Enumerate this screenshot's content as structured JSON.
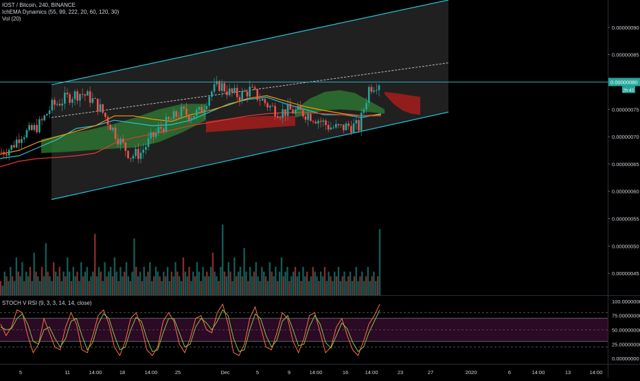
{
  "legend": {
    "symbol": "IOST / Bitcoin, 240, BINANCE",
    "indicator1": "IchEMA Dynamics (55, 99, 222, 20, 60, 120, 30)",
    "indicator2": "Vol (20)"
  },
  "stoch_legend": "STOCH V RSI (9, 3, 3, 14, 14, close)",
  "colors": {
    "background": "#000000",
    "channel": "#26c6da",
    "up_candle": "#26a69a",
    "down_candle": "#ef5350",
    "cloud_bull": "#2e7d32",
    "cloud_bear": "#b71c1c",
    "stoch_band": "#2a0a24",
    "price_marker": "#26a69a"
  },
  "chart_data": [
    {
      "type": "candlestick",
      "title": "IOST / Bitcoin, 240, BINANCE",
      "ylim": [
        4.1e-07,
        9.5e-07
      ],
      "y_ticks": [
        "0.00000090",
        "0.00000085",
        "0.00000080",
        "0.00000075",
        "0.00000070",
        "0.00000065",
        "0.00000060",
        "0.00000055",
        "0.00000050",
        "0.00000045"
      ],
      "y_tick_values": [
        9e-07,
        8.5e-07,
        8e-07,
        7.5e-07,
        7e-07,
        6.5e-07,
        6e-07,
        5.5e-07,
        5e-07,
        4.5e-07
      ],
      "x_ticks": [
        "5",
        "11",
        "14:00",
        "18",
        "14:00",
        "25",
        "Dec",
        "5",
        "9",
        "14:00",
        "16",
        "14:00",
        "23",
        "27",
        "2020",
        "6",
        "14:00",
        "13",
        "14:00"
      ],
      "last_price": "0.00000080",
      "countdown": "2h:42",
      "price_path": [
        6.72e-07,
        6.8e-07,
        7.05e-07,
        7.1e-07,
        7.25e-07,
        7.55e-07,
        7.65e-07,
        7.75e-07,
        7.8e-07,
        7.7e-07,
        7.5e-07,
        7.2e-07,
        6.9e-07,
        6.65e-07,
        6.7e-07,
        6.95e-07,
        7.15e-07,
        7.3e-07,
        7.45e-07,
        7.4e-07,
        7.45e-07,
        7.8e-07,
        7.95e-07,
        7.8e-07,
        7.75e-07,
        7.85e-07,
        7.7e-07,
        7.55e-07,
        7.45e-07,
        7.48e-07,
        7.45e-07,
        7.4e-07,
        7.3e-07,
        7.18e-07,
        7.15e-07,
        7.2e-07,
        7.18e-07,
        7.9e-07,
        8e-07
      ],
      "channel": {
        "upper_start": 7.95e-07,
        "upper_end": 9.5e-07,
        "lower_start": 5.85e-07,
        "lower_end": 7.45e-07,
        "mid_start": 7.35e-07,
        "mid_end": 8.35e-07
      },
      "ema_lines": [
        {
          "color": "#26c6da",
          "values": [
            6.6e-07,
            6.65e-07,
            6.8e-07,
            6.95e-07,
            7.15e-07,
            7.2e-07,
            7.3e-07,
            7.25e-07,
            7.2e-07,
            7.22e-07,
            7.3e-07,
            7.45e-07,
            7.6e-07,
            7.68e-07,
            7.72e-07,
            7.6e-07,
            7.5e-07,
            7.4e-07,
            7.4e-07,
            7.35e-07,
            7.42e-07
          ]
        },
        {
          "color": "#ff9800",
          "values": [
            6.68e-07,
            6.75e-07,
            6.9e-07,
            7e-07,
            7.1e-07,
            7.2e-07,
            7.38e-07,
            7.38e-07,
            7.32e-07,
            7.28e-07,
            7.4e-07,
            7.48e-07,
            7.58e-07,
            7.7e-07,
            7.75e-07,
            7.65e-07,
            7.55e-07,
            7.48e-07,
            7.42e-07,
            7.38e-07,
            7.4e-07
          ]
        },
        {
          "color": "#e53935",
          "values": [
            6.45e-07,
            6.55e-07,
            6.6e-07,
            6.62e-07,
            6.65e-07,
            6.7e-07,
            6.88e-07,
            6.98e-07,
            7.05e-07,
            7.12e-07,
            7.2e-07,
            7.26e-07,
            7.32e-07,
            7.38e-07,
            7.42e-07,
            7.44e-07,
            7.44e-07,
            7.42e-07,
            7.4e-07,
            7.38e-07,
            7.38e-07
          ]
        }
      ],
      "cloud_bull": [
        {
          "upper": [
            6.95e-07,
            7.05e-07,
            7.12e-07,
            7.22e-07,
            7.35e-07,
            7.5e-07,
            7.6e-07,
            7.6e-07
          ],
          "lower": [
            6.7e-07,
            6.72e-07,
            6.75e-07,
            6.78e-07,
            6.8e-07,
            6.9e-07,
            7.08e-07,
            7.3e-07
          ]
        },
        {
          "upper": [
            7.5e-07,
            7.7e-07,
            7.82e-07,
            7.85e-07,
            7.8e-07,
            7.65e-07,
            7.5e-07
          ],
          "lower": [
            7.35e-07,
            7.42e-07,
            7.48e-07,
            7.5e-07,
            7.48e-07,
            7.45e-07,
            7.42e-07
          ]
        }
      ],
      "cloud_bear": [
        {
          "upper": [
            7.28e-07,
            7.35e-07,
            7.38e-07,
            7.38e-07
          ],
          "lower": [
            7.08e-07,
            7.12e-07,
            7.16e-07,
            7.2e-07
          ]
        },
        {
          "upper": [
            7.82e-07,
            7.8e-07,
            7.78e-07,
            7.75e-07,
            7.73e-07
          ],
          "lower": [
            7.78e-07,
            7.6e-07,
            7.48e-07,
            7.42e-07,
            7.4e-07
          ]
        }
      ]
    },
    {
      "type": "bar",
      "title": "Vol (20)",
      "series": [
        {
          "values": [
            3,
            2,
            5,
            4,
            3,
            6,
            4,
            3,
            8,
            5,
            4,
            7,
            3,
            5,
            4,
            6,
            3,
            9,
            5,
            4,
            3,
            6,
            4,
            11,
            5,
            4,
            3,
            7,
            5,
            4,
            6,
            3,
            5,
            4,
            8,
            5,
            3,
            6,
            4,
            5,
            3,
            7,
            4,
            5,
            6,
            3,
            4,
            5,
            13,
            4,
            6,
            5,
            3,
            7,
            4,
            5,
            6,
            4,
            8,
            5,
            3,
            6,
            4,
            5,
            7,
            4,
            3,
            5,
            12,
            6,
            4,
            5,
            3,
            6,
            4,
            5,
            7,
            3,
            4,
            6,
            5,
            4,
            3,
            5,
            4,
            6,
            3,
            5,
            4,
            7,
            5,
            4,
            3,
            8,
            5,
            4,
            6,
            3,
            5,
            4,
            7,
            5,
            3,
            6,
            4,
            5,
            4,
            6,
            9,
            5,
            4,
            3,
            6,
            15,
            5,
            4,
            7,
            5,
            3,
            8,
            4,
            5,
            6,
            4,
            10,
            5,
            3,
            6,
            4,
            5,
            7,
            4,
            3,
            6,
            5,
            4,
            3,
            7,
            5,
            4,
            6,
            3,
            5,
            8,
            4,
            5,
            6,
            3,
            4,
            5,
            6,
            4,
            5,
            3,
            6,
            4,
            5,
            3,
            4,
            6,
            5,
            4,
            3,
            5,
            4,
            6,
            3,
            5,
            4,
            3,
            5,
            4,
            6,
            3,
            4,
            5,
            3,
            4,
            5,
            3,
            4,
            6,
            3,
            4,
            5,
            3,
            4,
            6,
            3,
            4,
            5,
            3,
            4,
            14
          ]
        }
      ]
    },
    {
      "type": "line",
      "title": "STOCH V RSI (9, 3, 3, 14, 14, close)",
      "y_ticks": [
        "100.00000000",
        "75.00000000",
        "50.00000000",
        "25.00000000",
        "0.00000000"
      ],
      "y_tick_values": [
        100,
        75,
        50,
        25,
        0
      ],
      "band": [
        30,
        70
      ],
      "dashed_levels": [
        80,
        20,
        50
      ],
      "series": [
        {
          "name": "K",
          "color": "#ff7043",
          "values": [
            60,
            40,
            55,
            85,
            80,
            40,
            10,
            25,
            70,
            45,
            20,
            15,
            55,
            80,
            60,
            15,
            10,
            40,
            75,
            85,
            60,
            20,
            5,
            30,
            70,
            80,
            55,
            15,
            5,
            20,
            65,
            80,
            65,
            25,
            10,
            35,
            70,
            75,
            50,
            45,
            80,
            95,
            60,
            10,
            5,
            25,
            70,
            90,
            55,
            20,
            15,
            45,
            80,
            70,
            30,
            10,
            35,
            75,
            80,
            45,
            10,
            20,
            55,
            70,
            40,
            15,
            5,
            30,
            60,
            75,
            95
          ]
        },
        {
          "name": "D",
          "color": "#8bc34a",
          "values": [
            55,
            50,
            52,
            70,
            78,
            60,
            30,
            25,
            50,
            55,
            35,
            20,
            35,
            65,
            70,
            40,
            15,
            28,
            60,
            78,
            70,
            40,
            15,
            20,
            50,
            72,
            65,
            35,
            12,
            15,
            45,
            70,
            70,
            45,
            20,
            25,
            55,
            70,
            62,
            50,
            65,
            85,
            75,
            35,
            12,
            15,
            50,
            78,
            70,
            40,
            20,
            32,
            65,
            75,
            50,
            22,
            25,
            55,
            75,
            60,
            28,
            18,
            40,
            62,
            52,
            28,
            12,
            20,
            45,
            65,
            85
          ]
        }
      ]
    }
  ]
}
